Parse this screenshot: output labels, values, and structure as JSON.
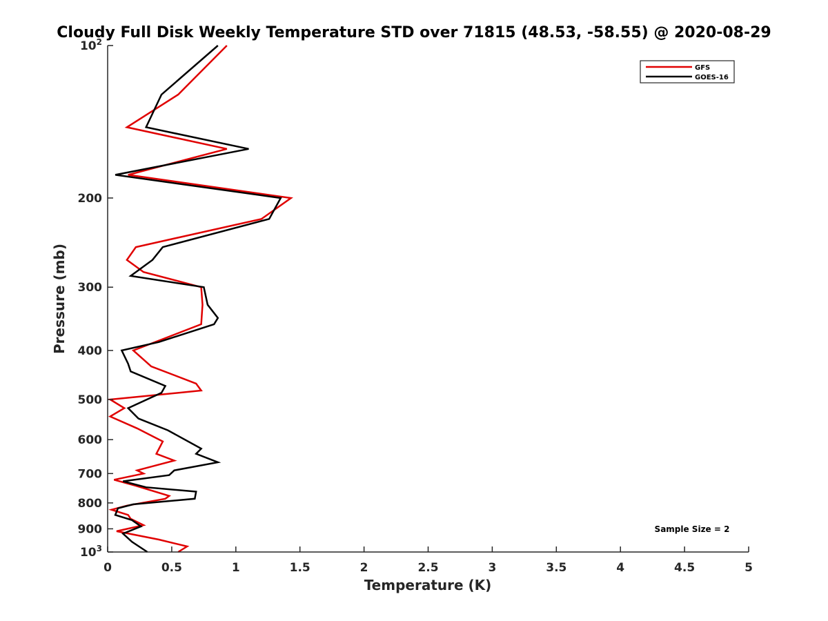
{
  "chart_data": {
    "type": "line",
    "title": "Cloudy Full Disk Weekly Temperature STD over 71815 (48.53, -58.55) @ 2020-08-29",
    "xlabel": "Temperature (K)",
    "ylabel": "Pressure (mb)",
    "xlim": [
      0,
      5
    ],
    "ylim": [
      100,
      1000
    ],
    "y_scale": "log",
    "y_reversed": true,
    "grid": false,
    "legend_position": "top-right",
    "x_ticks": [
      {
        "value": 0,
        "label": "0"
      },
      {
        "value": 0.5,
        "label": "0.5"
      },
      {
        "value": 1,
        "label": "1"
      },
      {
        "value": 1.5,
        "label": "1.5"
      },
      {
        "value": 2,
        "label": "2"
      },
      {
        "value": 2.5,
        "label": "2.5"
      },
      {
        "value": 3,
        "label": "3"
      },
      {
        "value": 3.5,
        "label": "3.5"
      },
      {
        "value": 4,
        "label": "4"
      },
      {
        "value": 4.5,
        "label": "4.5"
      },
      {
        "value": 5,
        "label": "5"
      }
    ],
    "y_ticks": [
      {
        "value": 100,
        "label": "10",
        "sup": "2"
      },
      {
        "value": 200,
        "label": "200"
      },
      {
        "value": 300,
        "label": "300"
      },
      {
        "value": 400,
        "label": "400"
      },
      {
        "value": 500,
        "label": "500"
      },
      {
        "value": 600,
        "label": "600"
      },
      {
        "value": 700,
        "label": "700"
      },
      {
        "value": 800,
        "label": "800"
      },
      {
        "value": 900,
        "label": "900"
      },
      {
        "value": 1000,
        "label": "10",
        "sup": "3"
      }
    ],
    "series": [
      {
        "name": "GFS",
        "color": "#e00000",
        "points": [
          {
            "x": 0.93,
            "y": 100
          },
          {
            "x": 0.55,
            "y": 125
          },
          {
            "x": 0.15,
            "y": 145
          },
          {
            "x": 0.93,
            "y": 160
          },
          {
            "x": 0.16,
            "y": 180
          },
          {
            "x": 1.43,
            "y": 200
          },
          {
            "x": 1.2,
            "y": 220
          },
          {
            "x": 0.22,
            "y": 250
          },
          {
            "x": 0.15,
            "y": 265
          },
          {
            "x": 0.28,
            "y": 280
          },
          {
            "x": 0.73,
            "y": 300
          },
          {
            "x": 0.74,
            "y": 325
          },
          {
            "x": 0.73,
            "y": 355
          },
          {
            "x": 0.2,
            "y": 400
          },
          {
            "x": 0.34,
            "y": 430
          },
          {
            "x": 0.69,
            "y": 465
          },
          {
            "x": 0.73,
            "y": 480
          },
          {
            "x": 0.02,
            "y": 500
          },
          {
            "x": 0.13,
            "y": 520
          },
          {
            "x": 0.02,
            "y": 540
          },
          {
            "x": 0.23,
            "y": 570
          },
          {
            "x": 0.43,
            "y": 605
          },
          {
            "x": 0.38,
            "y": 640
          },
          {
            "x": 0.52,
            "y": 660
          },
          {
            "x": 0.23,
            "y": 690
          },
          {
            "x": 0.28,
            "y": 700
          },
          {
            "x": 0.05,
            "y": 720
          },
          {
            "x": 0.22,
            "y": 740
          },
          {
            "x": 0.48,
            "y": 775
          },
          {
            "x": 0.45,
            "y": 785
          },
          {
            "x": 0.15,
            "y": 810
          },
          {
            "x": 0.03,
            "y": 825
          },
          {
            "x": 0.16,
            "y": 845
          },
          {
            "x": 0.18,
            "y": 860
          },
          {
            "x": 0.28,
            "y": 885
          },
          {
            "x": 0.07,
            "y": 910
          },
          {
            "x": 0.4,
            "y": 945
          },
          {
            "x": 0.62,
            "y": 975
          },
          {
            "x": 0.55,
            "y": 1000
          }
        ]
      },
      {
        "name": "GOES-16",
        "color": "#000000",
        "points": [
          {
            "x": 0.86,
            "y": 100
          },
          {
            "x": 0.42,
            "y": 125
          },
          {
            "x": 0.3,
            "y": 145
          },
          {
            "x": 1.1,
            "y": 160
          },
          {
            "x": 0.06,
            "y": 180
          },
          {
            "x": 1.35,
            "y": 200
          },
          {
            "x": 1.26,
            "y": 220
          },
          {
            "x": 0.43,
            "y": 250
          },
          {
            "x": 0.35,
            "y": 265
          },
          {
            "x": 0.18,
            "y": 285
          },
          {
            "x": 0.75,
            "y": 300
          },
          {
            "x": 0.78,
            "y": 325
          },
          {
            "x": 0.86,
            "y": 345
          },
          {
            "x": 0.83,
            "y": 355
          },
          {
            "x": 0.4,
            "y": 385
          },
          {
            "x": 0.11,
            "y": 400
          },
          {
            "x": 0.16,
            "y": 425
          },
          {
            "x": 0.18,
            "y": 440
          },
          {
            "x": 0.45,
            "y": 470
          },
          {
            "x": 0.42,
            "y": 485
          },
          {
            "x": 0.16,
            "y": 520
          },
          {
            "x": 0.24,
            "y": 545
          },
          {
            "x": 0.47,
            "y": 575
          },
          {
            "x": 0.73,
            "y": 625
          },
          {
            "x": 0.69,
            "y": 640
          },
          {
            "x": 0.86,
            "y": 665
          },
          {
            "x": 0.52,
            "y": 690
          },
          {
            "x": 0.48,
            "y": 705
          },
          {
            "x": 0.12,
            "y": 725
          },
          {
            "x": 0.3,
            "y": 745
          },
          {
            "x": 0.69,
            "y": 760
          },
          {
            "x": 0.68,
            "y": 785
          },
          {
            "x": 0.2,
            "y": 805
          },
          {
            "x": 0.08,
            "y": 820
          },
          {
            "x": 0.06,
            "y": 845
          },
          {
            "x": 0.19,
            "y": 865
          },
          {
            "x": 0.26,
            "y": 890
          },
          {
            "x": 0.12,
            "y": 920
          },
          {
            "x": 0.19,
            "y": 955
          },
          {
            "x": 0.31,
            "y": 1000
          }
        ]
      }
    ],
    "annotations": [
      "Sample Size = 2"
    ]
  }
}
